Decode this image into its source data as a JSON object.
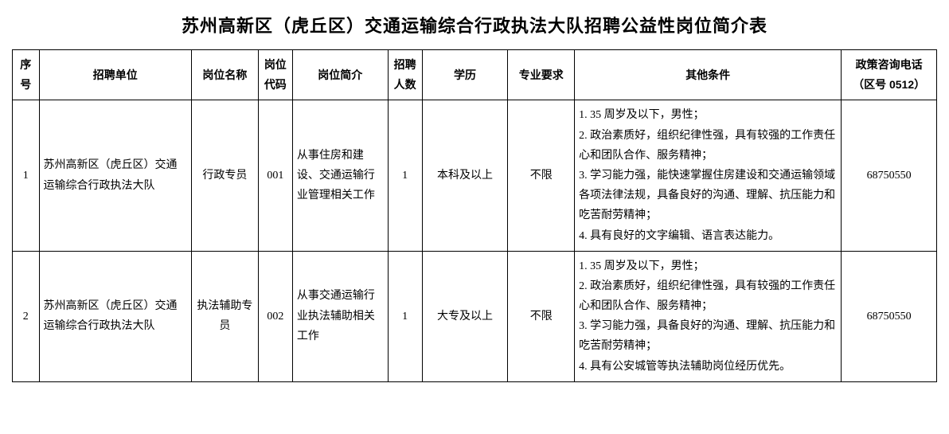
{
  "title": "苏州高新区（虎丘区）交通运输综合行政执法大队招聘公益性岗位简介表",
  "columns": {
    "seq": "序号",
    "unit": "招聘单位",
    "position": "岗位名称",
    "code": "岗位代码",
    "desc": "岗位简介",
    "count": "招聘人数",
    "edu": "学历",
    "major": "专业要求",
    "other": "其他条件",
    "phone": "政策咨询电话（区号 0512）"
  },
  "rows": [
    {
      "seq": "1",
      "unit": "苏州高新区（虎丘区）交通运输综合行政执法大队",
      "position": "行政专员",
      "code": "001",
      "desc": "从事住房和建设、交通运输行业管理相关工作",
      "count": "1",
      "edu": "本科及以上",
      "major": "不限",
      "other": "1. 35 周岁及以下，男性；\n2. 政治素质好，组织纪律性强，具有较强的工作责任心和团队合作、服务精神；\n3. 学习能力强，能快速掌握住房建设和交通运输领域各项法律法规，具备良好的沟通、理解、抗压能力和吃苦耐劳精神；\n4. 具有良好的文字编辑、语言表达能力。",
      "phone": "68750550"
    },
    {
      "seq": "2",
      "unit": "苏州高新区（虎丘区）交通运输综合行政执法大队",
      "position": "执法辅助专员",
      "code": "002",
      "desc": "从事交通运输行业执法辅助相关工作",
      "count": "1",
      "edu": "大专及以上",
      "major": "不限",
      "other": "1. 35 周岁及以下，男性；\n2. 政治素质好，组织纪律性强，具有较强的工作责任心和团队合作、服务精神；\n3. 学习能力强，具备良好的沟通、理解、抗压能力和吃苦耐劳精神；\n4. 具有公安城管等执法辅助岗位经历优先。",
      "phone": "68750550"
    }
  ]
}
